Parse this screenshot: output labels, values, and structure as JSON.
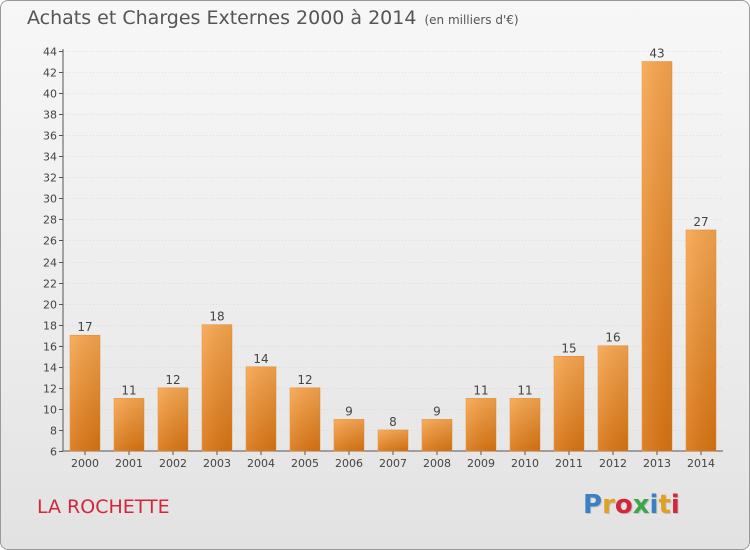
{
  "title": "Achats et Charges Externes 2000 à 2014",
  "subtitle": "(en milliers d'€)",
  "commune": "LA ROCHETTE",
  "logo": {
    "text": "Proxiti",
    "colors": [
      "#3b7fc4",
      "#e0a020",
      "#d4263b",
      "#3aa84a",
      "#3b7fc4",
      "#e0a020",
      "#d4263b"
    ]
  },
  "colors": {
    "bar_top": "#f7a64f",
    "bar_bottom": "#d97412",
    "bar_edge": "#e8892a",
    "axis": "#555555",
    "grid": "#cccccc",
    "title": "#555555",
    "commune": "#d4263b"
  },
  "chart_data": {
    "type": "bar",
    "title": "Achats et Charges Externes 2000 à 2014",
    "subtitle": "(en milliers d'€)",
    "categories": [
      "2000",
      "2001",
      "2002",
      "2003",
      "2004",
      "2005",
      "2006",
      "2007",
      "2008",
      "2009",
      "2010",
      "2011",
      "2012",
      "2013",
      "2014"
    ],
    "values": [
      17,
      11,
      12,
      18,
      14,
      12,
      9,
      8,
      9,
      11,
      11,
      15,
      16,
      43,
      27
    ],
    "ylim": [
      6,
      44
    ],
    "yticks": [
      6,
      8,
      10,
      12,
      14,
      16,
      18,
      20,
      22,
      24,
      26,
      28,
      30,
      32,
      34,
      36,
      38,
      40,
      42,
      44
    ],
    "xlabel": "",
    "ylabel": "",
    "grid": true,
    "data_labels": true
  }
}
